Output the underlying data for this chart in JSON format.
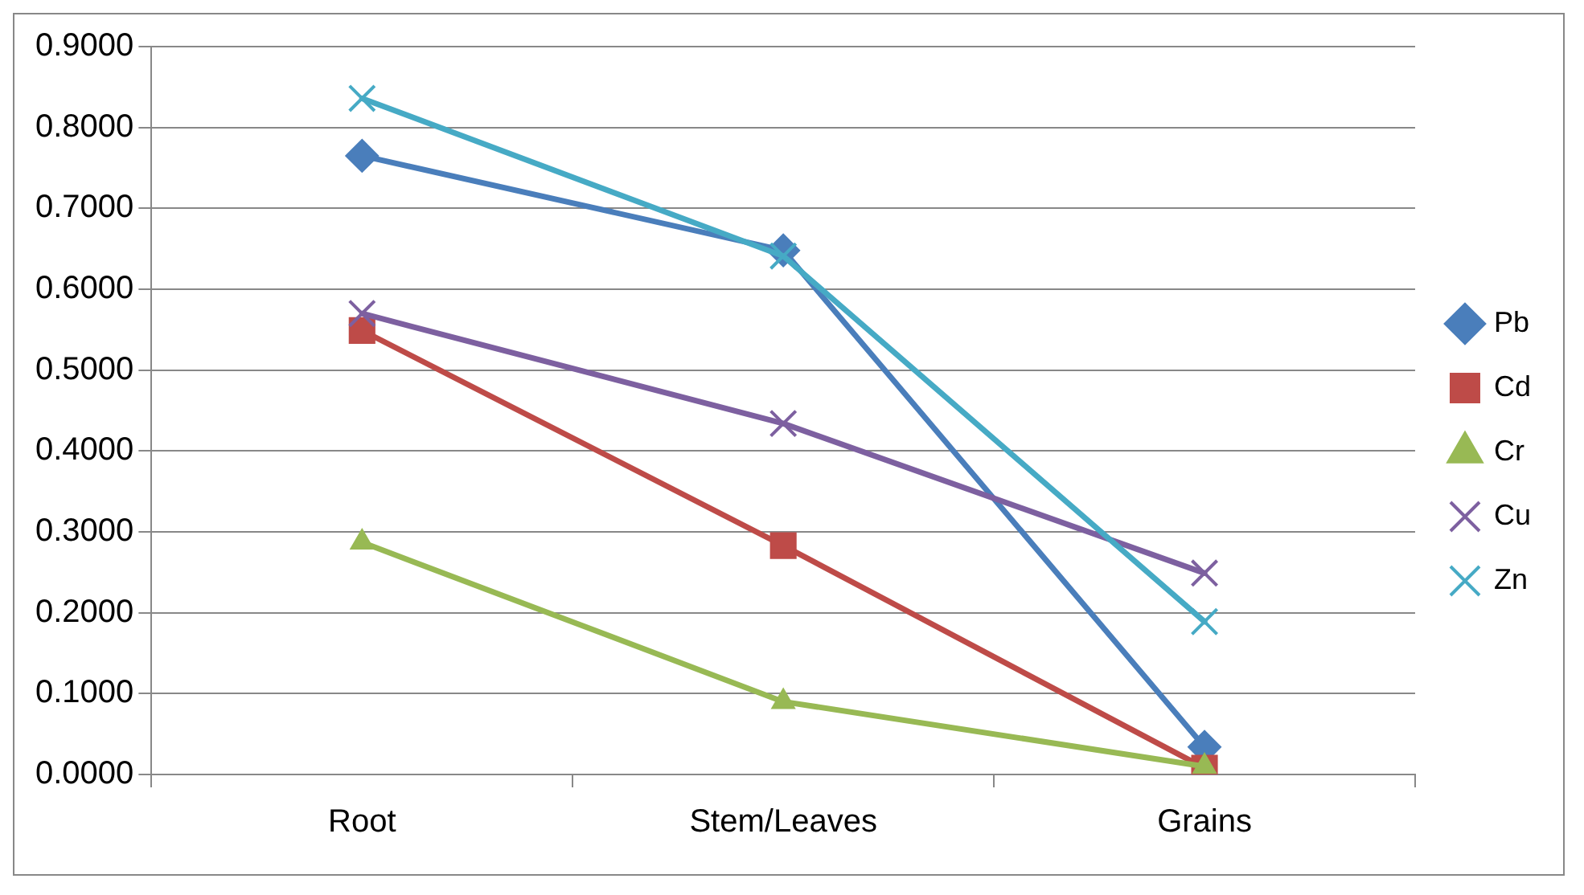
{
  "chart_data": {
    "type": "line",
    "categories": [
      "Root",
      "Stem/Leaves",
      "Grains"
    ],
    "series": [
      {
        "name": "Pb",
        "color": "#4a7ebb",
        "marker": "diamond",
        "values": [
          0.765,
          0.648,
          0.034
        ]
      },
      {
        "name": "Cd",
        "color": "#be4b48",
        "marker": "square",
        "values": [
          0.549,
          0.283,
          0.008
        ]
      },
      {
        "name": "Cr",
        "color": "#98b954",
        "marker": "triangle",
        "values": [
          0.287,
          0.09,
          0.01
        ]
      },
      {
        "name": "Cu",
        "color": "#7d60a0",
        "marker": "cross",
        "values": [
          0.57,
          0.434,
          0.249
        ]
      },
      {
        "name": "Zn",
        "color": "#46aac5",
        "marker": "cross",
        "values": [
          0.836,
          0.641,
          0.189
        ]
      }
    ],
    "ylim": [
      0,
      0.9
    ],
    "yticks": [
      {
        "value": 0,
        "label": "0.0000"
      },
      {
        "value": 0.1,
        "label": "0.1000"
      },
      {
        "value": 0.2,
        "label": "0.2000"
      },
      {
        "value": 0.3,
        "label": "0.3000"
      },
      {
        "value": 0.4,
        "label": "0.4000"
      },
      {
        "value": 0.5,
        "label": "0.5000"
      },
      {
        "value": 0.6,
        "label": "0.6000"
      },
      {
        "value": 0.7,
        "label": "0.7000"
      },
      {
        "value": 0.8,
        "label": "0.8000"
      },
      {
        "value": 0.9,
        "label": "0.9000"
      }
    ],
    "grid": "y",
    "legend": "right",
    "line_style": "solid"
  }
}
